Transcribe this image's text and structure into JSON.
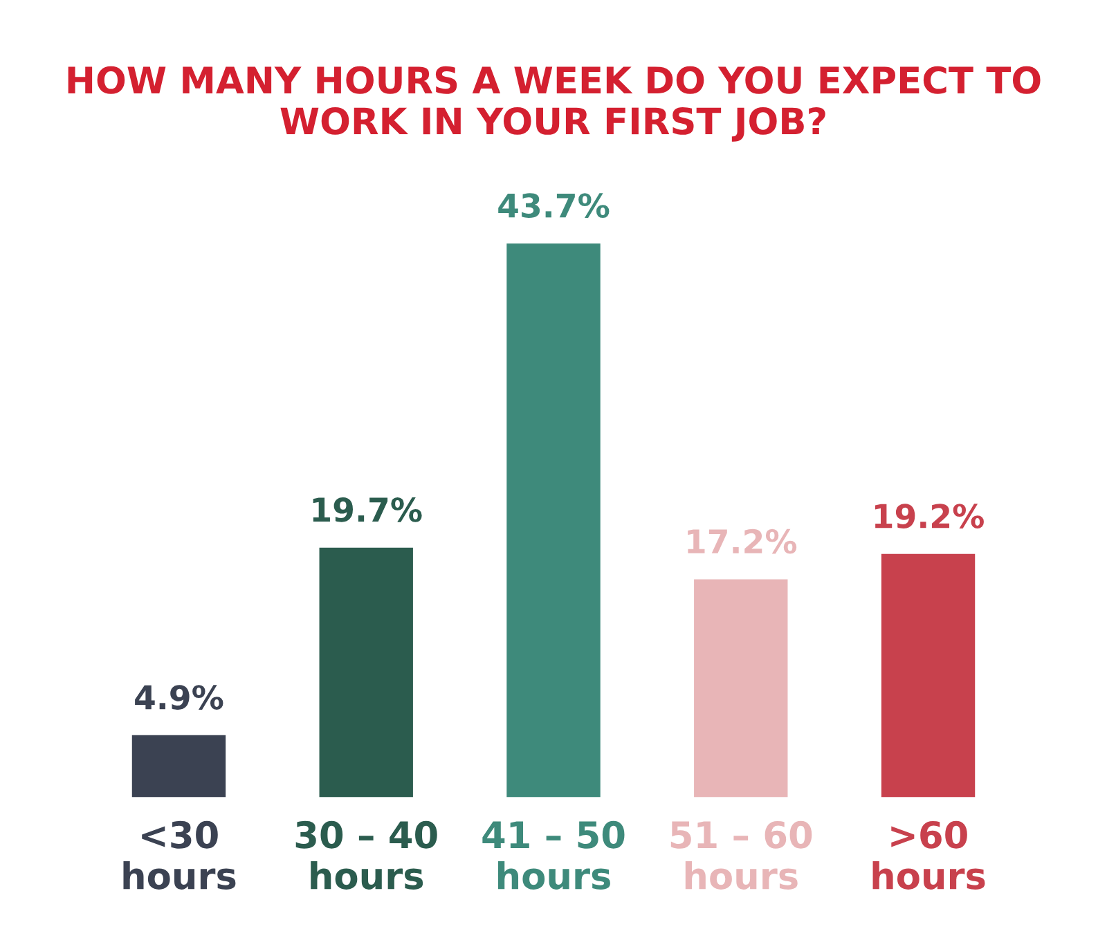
{
  "chart_data": {
    "type": "bar",
    "title": "HOW MANY HOURS A WEEK DO YOU EXPECT TO WORK IN YOUR FIRST JOB?",
    "categories": [
      "<30\nhours",
      "30 – 40\nhours",
      "41 – 50\nhours",
      "51 – 60\nhours",
      ">60\nhours"
    ],
    "values": [
      4.9,
      19.7,
      43.7,
      17.2,
      19.2
    ],
    "value_labels": [
      "4.9%",
      "19.7%",
      "43.7%",
      "17.2%",
      "19.2%"
    ],
    "colors": [
      "#3b4252",
      "#2b5c4e",
      "#3e8a7b",
      "#e8b5b7",
      "#c8414d"
    ],
    "grid": false
  }
}
